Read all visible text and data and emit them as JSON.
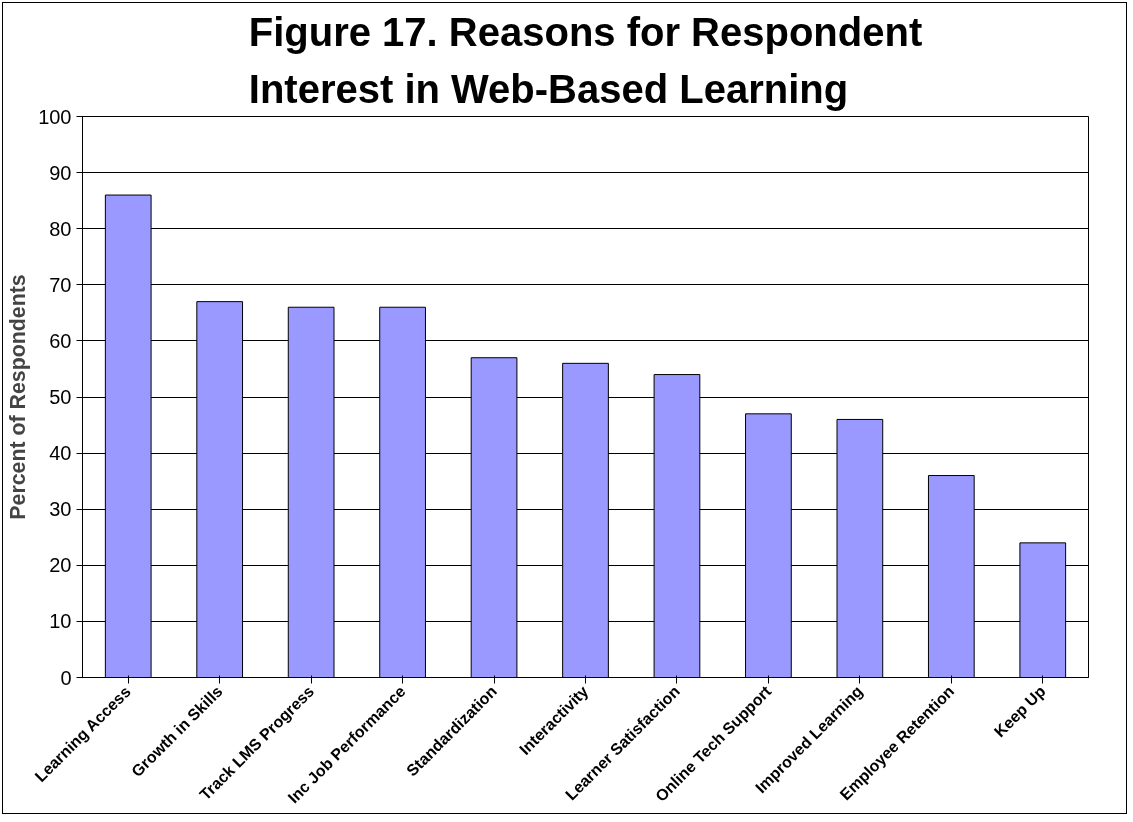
{
  "chart_data": {
    "type": "bar",
    "title": "Figure 17. Reasons for Respondent Interest in Web-Based Learning",
    "ylabel": "Percent of Respondents",
    "categories": [
      "Learning Access",
      "Growth in Skills",
      "Track LMS Progress",
      "Inc Job Performance",
      "Standardization",
      "Interactivity",
      "Learner Satisfaction",
      "Online Tech Support",
      "Improved Learning",
      "Employee Retention",
      "Keep Up"
    ],
    "values": [
      86,
      67,
      66,
      66,
      57,
      56,
      54,
      47,
      46,
      36,
      24
    ],
    "color": "#9999ff",
    "ylim": [
      0,
      100
    ],
    "yticks": [
      0,
      10,
      20,
      30,
      40,
      50,
      60,
      70,
      80,
      90,
      100
    ],
    "grid": "y"
  }
}
